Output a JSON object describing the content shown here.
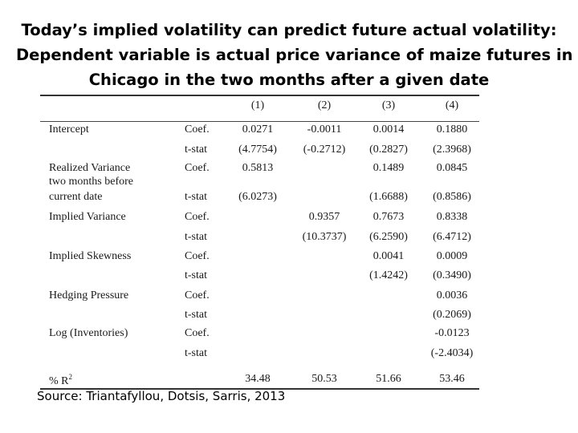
{
  "title": {
    "line1": "Today’s implied volatility can predict future actual volatility:",
    "line2": "Dependent variable is actual price variance of maize futures in",
    "line3": "Chicago in the two months after a given date"
  },
  "table": {
    "columns": [
      "(1)",
      "(2)",
      "(3)",
      "(4)"
    ],
    "stat_coef": "Coef.",
    "stat_tstat": "t-stat",
    "rows": {
      "intercept": {
        "label": "Intercept",
        "coef": [
          "0.0271",
          "-0.0011",
          "0.0014",
          "0.1880"
        ],
        "tstat": [
          "(4.7754)",
          "(-0.2712)",
          "(0.2827)",
          "(2.3968)"
        ]
      },
      "realized_variance": {
        "label_line1": "Realized Variance",
        "label_line2": "two  months before",
        "label_line3": "current date",
        "coef": [
          "0.5813",
          "",
          "0.1489",
          "0.0845"
        ],
        "tstat": [
          "(6.0273)",
          "",
          "(1.6688)",
          "(0.8586)"
        ]
      },
      "implied_variance": {
        "label": "Implied Variance",
        "coef": [
          "",
          "0.9357",
          "0.7673",
          "0.8338"
        ],
        "tstat": [
          "",
          "(10.3737)",
          "(6.2590)",
          "(6.4712)"
        ]
      },
      "implied_skewness": {
        "label": "Implied Skewness",
        "coef": [
          "",
          "",
          "0.0041",
          "0.0009"
        ],
        "tstat": [
          "",
          "",
          "(1.4242)",
          "(0.3490)"
        ]
      },
      "hedging_pressure": {
        "label": "Hedging Pressure",
        "coef": [
          "",
          "",
          "",
          "0.0036"
        ],
        "tstat": [
          "",
          "",
          "",
          "(0.2069)"
        ]
      },
      "log_inventories": {
        "label": "Log (Inventories)",
        "coef": [
          "",
          "",
          "",
          "-0.0123"
        ],
        "tstat": [
          "",
          "",
          "",
          "(-2.4034)"
        ]
      }
    },
    "r2": {
      "label": "%  R",
      "superscript": "2",
      "values": [
        "34.48",
        "50.53",
        "51.66",
        "53.46"
      ]
    }
  },
  "source": "Source: Triantafyllou, Dotsis, Sarris, 2013"
}
